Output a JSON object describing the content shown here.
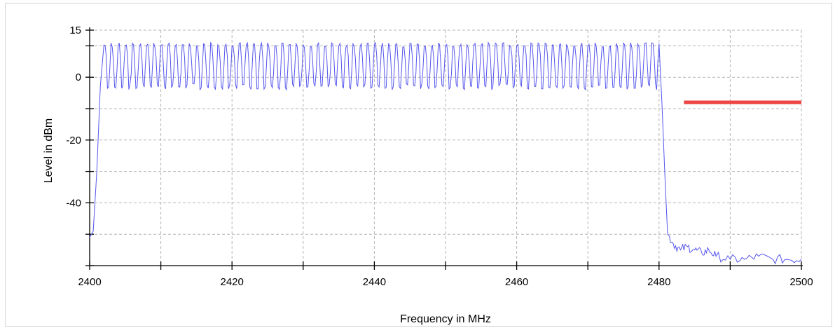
{
  "chart_data": {
    "type": "line",
    "xlabel": "Frequency in MHz",
    "ylabel": "Level in dBm",
    "xlim": [
      2400,
      2500
    ],
    "ylim": [
      -60,
      15
    ],
    "x_ticks": [
      2400,
      2420,
      2440,
      2460,
      2480,
      2500
    ],
    "y_ticks": [
      15,
      0,
      -20,
      -40
    ],
    "x_grid": [
      2400,
      2410,
      2420,
      2430,
      2440,
      2450,
      2460,
      2470,
      2480,
      2490,
      2500
    ],
    "y_grid": [
      15,
      10,
      0,
      -10,
      -20,
      -30,
      -40,
      -50,
      -60
    ],
    "grid": true,
    "series": [
      {
        "color": "#5555ee",
        "shape": {
          "channel_start": 2402,
          "channel_end": 2480,
          "channel_spacing": 1,
          "peak_level": 11,
          "trough_level": -5,
          "floor_level": -58
        },
        "points": [
          [
            2400,
            -51
          ],
          [
            2400.5,
            -49
          ],
          [
            2401,
            -30
          ],
          [
            2401.5,
            -3
          ],
          [
            2402,
            11
          ],
          [
            2480,
            10
          ],
          [
            2480.4,
            -8
          ],
          [
            2480.8,
            -30
          ],
          [
            2481.2,
            -50
          ],
          [
            2482,
            -53
          ],
          [
            2483,
            -55
          ],
          [
            2484,
            -54
          ],
          [
            2485,
            -55
          ],
          [
            2486,
            -56
          ],
          [
            2487,
            -55
          ],
          [
            2488,
            -57
          ],
          [
            2490,
            -58
          ],
          [
            2492,
            -58
          ],
          [
            2494,
            -57
          ],
          [
            2496,
            -58
          ],
          [
            2498,
            -58
          ],
          [
            2500,
            -58
          ]
        ]
      },
      {
        "color": "#ee4444",
        "points": [
          [
            2483.5,
            -8
          ],
          [
            2500,
            -8
          ]
        ]
      }
    ]
  }
}
